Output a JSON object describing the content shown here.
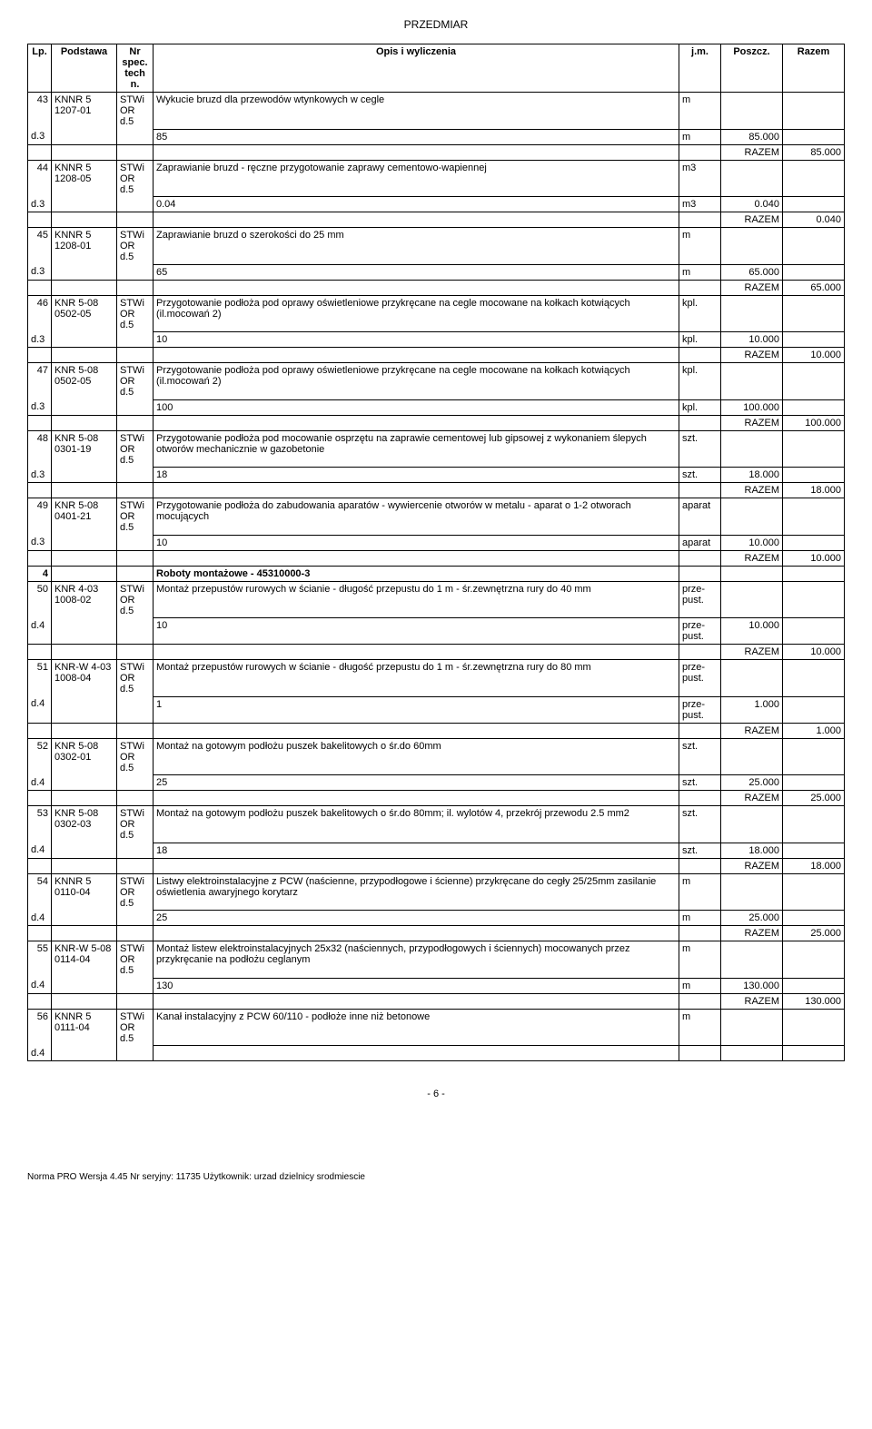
{
  "doc_title": "PRZEDMIAR",
  "columns": {
    "lp": "Lp.",
    "podstawa": "Podstawa",
    "spec": "Nr spec. tech n.",
    "opis": "Opis i wyliczenia",
    "jm": "j.m.",
    "poszcz": "Poszcz.",
    "razem": "Razem"
  },
  "spec_value": "STWi OR d.5",
  "razem_label": "RAZEM",
  "rows": [
    {
      "lp_top": "43",
      "lp_bot": "d.3",
      "base": "KNNR 5 1207-01",
      "desc": "Wykucie bruzd dla przewodów wtynkowych w cegle",
      "jm": "m",
      "calc": "85",
      "calc_jm": "m",
      "calc_val": "85.000",
      "razem": "85.000"
    },
    {
      "lp_top": "44",
      "lp_bot": "d.3",
      "base": "KNNR 5 1208-05",
      "desc": "Zaprawianie bruzd - ręczne przygotowanie zaprawy cementowo-wapiennej",
      "jm": "m3",
      "calc": "0.04",
      "calc_jm": "m3",
      "calc_val": "0.040",
      "razem": "0.040"
    },
    {
      "lp_top": "45",
      "lp_bot": "d.3",
      "base": "KNNR 5 1208-01",
      "desc": "Zaprawianie bruzd o szerokości do 25 mm",
      "jm": "m",
      "calc": "65",
      "calc_jm": "m",
      "calc_val": "65.000",
      "razem": "65.000"
    },
    {
      "lp_top": "46",
      "lp_bot": "d.3",
      "base": "KNR 5-08 0502-05",
      "desc": "Przygotowanie podłoża pod oprawy oświetleniowe przykręcane na cegle mocowane na kołkach kotwiących (il.mocowań 2)",
      "jm": "kpl.",
      "calc": "10",
      "calc_jm": "kpl.",
      "calc_val": "10.000",
      "razem": "10.000"
    },
    {
      "lp_top": "47",
      "lp_bot": "d.3",
      "base": "KNR 5-08 0502-05",
      "desc": "Przygotowanie podłoża pod oprawy oświetleniowe przykręcane na cegle mocowane na kołkach kotwiących (il.mocowań 2)",
      "jm": "kpl.",
      "calc": "100",
      "calc_jm": "kpl.",
      "calc_val": "100.000",
      "razem": "100.000"
    },
    {
      "lp_top": "48",
      "lp_bot": "d.3",
      "base": "KNR 5-08 0301-19",
      "desc": "Przygotowanie podłoża pod mocowanie osprzętu na zaprawie cementowej lub gipsowej z wykonaniem ślepych otworów mechanicznie w gazobetonie",
      "jm": "szt.",
      "calc": "18",
      "calc_jm": "szt.",
      "calc_val": "18.000",
      "razem": "18.000"
    },
    {
      "lp_top": "49",
      "lp_bot": "d.3",
      "base": "KNR 5-08 0401-21",
      "desc": "Przygotowanie podłoża do zabudowania aparatów - wywiercenie otworów w metalu - aparat o 1-2 otworach mocujących",
      "jm": "aparat",
      "calc": "10",
      "calc_jm": "aparat",
      "calc_val": "10.000",
      "razem": "10.000"
    }
  ],
  "section": {
    "lp": "4",
    "title": "Roboty montażowe  - 45310000-3"
  },
  "rows2": [
    {
      "lp_top": "50",
      "lp_bot": "d.4",
      "base": "KNR 4-03 1008-02",
      "desc": "Montaż przepustów rurowych w ścianie - długość przepustu do 1 m - śr.zewnętrzna rury do 40 mm",
      "jm": "prze-pust.",
      "calc": "10",
      "calc_jm": "prze-pust.",
      "calc_val": "10.000",
      "razem": "10.000"
    },
    {
      "lp_top": "51",
      "lp_bot": "d.4",
      "base": "KNR-W 4-03 1008-04",
      "desc": "Montaż przepustów rurowych w ścianie - długość przepustu do 1 m - śr.zewnętrzna rury do 80 mm",
      "jm": "prze-pust.",
      "calc": "1",
      "calc_jm": "prze-pust.",
      "calc_val": "1.000",
      "razem": "1.000"
    },
    {
      "lp_top": "52",
      "lp_bot": "d.4",
      "base": "KNR 5-08 0302-01",
      "desc": "Montaż na gotowym podłożu puszek bakelitowych o śr.do 60mm",
      "jm": "szt.",
      "calc": "25",
      "calc_jm": "szt.",
      "calc_val": "25.000",
      "razem": "25.000"
    },
    {
      "lp_top": "53",
      "lp_bot": "d.4",
      "base": "KNR 5-08 0302-03",
      "desc": "Montaż na gotowym podłożu puszek bakelitowych o śr.do 80mm; il. wylotów 4, przekrój przewodu 2.5 mm2",
      "jm": "szt.",
      "calc": "18",
      "calc_jm": "szt.",
      "calc_val": "18.000",
      "razem": "18.000"
    },
    {
      "lp_top": "54",
      "lp_bot": "d.4",
      "base": "KNNR 5 0110-04",
      "desc": "Listwy elektroinstalacyjne z PCW (naścienne, przypodłogowe i ścienne) przykręcane do cegły 25/25mm zasilanie oświetlenia awaryjnego korytarz",
      "jm": "m",
      "calc": "25",
      "calc_jm": "m",
      "calc_val": "25.000",
      "razem": "25.000"
    },
    {
      "lp_top": "55",
      "lp_bot": "d.4",
      "base": "KNR-W 5-08 0114-04",
      "desc": "Montaż listew elektroinstalacyjnych 25x32 (naściennych, przypodłogowych i ściennych) mocowanych przez przykręcanie na podłożu ceglanym",
      "jm": "m",
      "calc": "130",
      "calc_jm": "m",
      "calc_val": "130.000",
      "razem": "130.000"
    }
  ],
  "last_row": {
    "lp_top": "56",
    "lp_bot": "d.4",
    "base": "KNNR 5 0111-04",
    "desc": "Kanał instalacyjny z PCW 60/110 - podłoże inne niż betonowe",
    "jm": "m"
  },
  "page_num": "- 6 -",
  "footer": "Norma PRO Wersja 4.45 Nr seryjny: 11735 Użytkownik: urzad dzielnicy srodmiescie"
}
